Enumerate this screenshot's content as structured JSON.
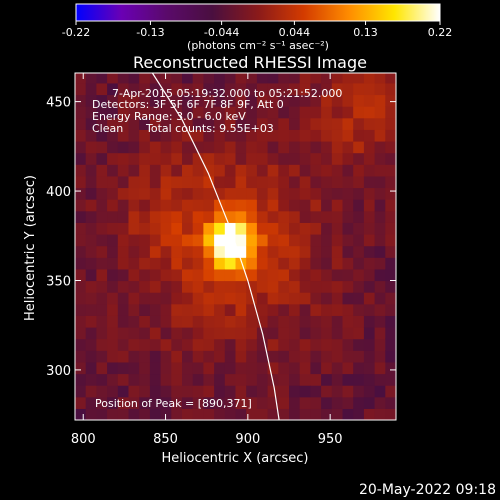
{
  "chart_data": {
    "type": "heatmap",
    "title": "Reconstructed RHESSI Image",
    "xlabel": "Heliocentric X (arcsec)",
    "ylabel": "Heliocentric Y (arcsec)",
    "xlim": [
      795,
      990
    ],
    "ylim": [
      272,
      466
    ],
    "x_ticks": [
      800,
      850,
      900,
      950
    ],
    "y_ticks": [
      300,
      350,
      400,
      450
    ],
    "colorbar": {
      "range": [
        -0.22,
        0.22
      ],
      "ticks": [
        "-0.22",
        "-0.13",
        "-0.044",
        "0.044",
        "0.13",
        "0.22"
      ],
      "units_label": "(photons cm⁻² s⁻¹ asec⁻²)",
      "colormap": [
        "#0000ff",
        "#6a00b4",
        "#5a0a6a",
        "#4a0f3f",
        "#8a1a1a",
        "#d33b00",
        "#ff8c00",
        "#ffe600",
        "#ffffff"
      ]
    },
    "info_lines": [
      "7-Apr-2015 05:19:32.000 to 05:21:52.000",
      "Detectors: 3F 5F 6F 7F 8F 9F, Att 0",
      "Energy Range: 3.0 - 6.0 keV",
      "Clean",
      "Total counts: 9.55E+03"
    ],
    "peak_label": "Position of Peak = [890,371]",
    "peak": {
      "x": 890,
      "y": 371,
      "value": 0.22
    },
    "limb_curve": [
      [
        842,
        466
      ],
      [
        860,
        440
      ],
      [
        876,
        410
      ],
      [
        889,
        380
      ],
      [
        900,
        350
      ],
      [
        909,
        320
      ],
      [
        916,
        290
      ],
      [
        919,
        272
      ]
    ],
    "secondary_sources": [
      {
        "x": 970,
        "y": 445,
        "value": 0.06
      },
      {
        "x": 845,
        "y": 390,
        "value": 0.02
      }
    ]
  },
  "footer": {
    "timestamp": "20-May-2022 09:18"
  }
}
